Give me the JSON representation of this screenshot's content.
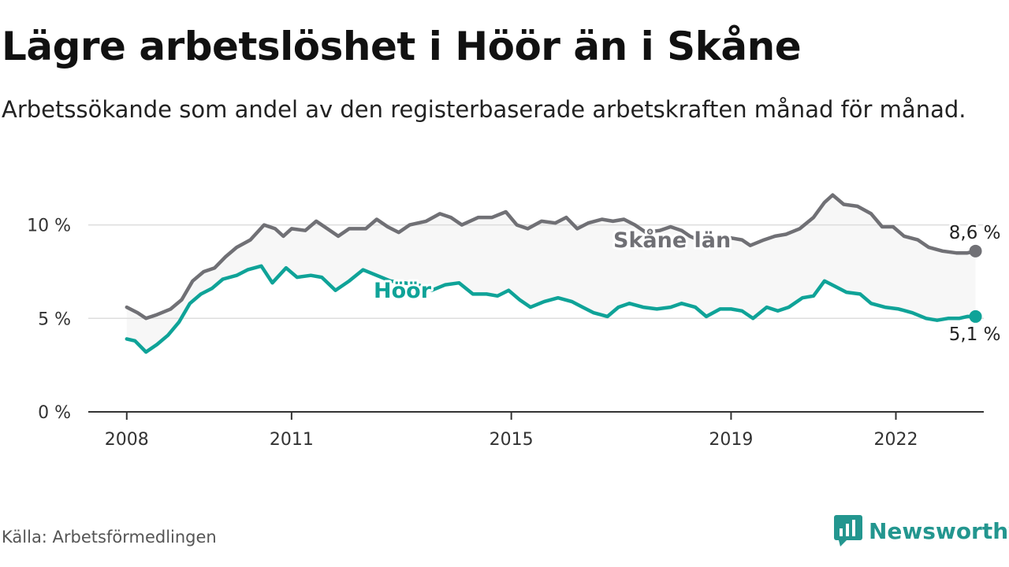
{
  "title": "Lägre arbetslöshet i Höör än i Skåne",
  "subtitle": "Arbetssökande som andel av den registerbaserade arbetskraften månad för månad.",
  "source": "Källa: Arbetsförmedlingen",
  "brand": {
    "name": "Newsworthy",
    "icon": "newsworthy-logo-icon"
  },
  "colors": {
    "skane": "#707075",
    "hoor": "#0fa398",
    "band": "#f7f7f7",
    "grid": "#dddddd",
    "axis": "#333333",
    "text": "#333333"
  },
  "chart_data": {
    "type": "line",
    "title": "Lägre arbetslöshet i Höör än i Skåne",
    "xlabel": "",
    "ylabel": "",
    "x_ticks": [
      {
        "value": 2008,
        "label": "2008"
      },
      {
        "value": 2011,
        "label": "2011"
      },
      {
        "value": 2015,
        "label": "2015"
      },
      {
        "value": 2019,
        "label": "2019"
      },
      {
        "value": 2022,
        "label": "2022"
      }
    ],
    "xlim": [
      2007.3,
      2023.6
    ],
    "y_ticks": [
      {
        "value": 0,
        "label": "0 %"
      },
      {
        "value": 5,
        "label": "5 %"
      },
      {
        "value": 10,
        "label": "10 %"
      }
    ],
    "ylim": [
      0,
      11.5
    ],
    "series": [
      {
        "name": "Skåne län",
        "label": "Skåne län",
        "end_label": "8,6 %",
        "values": [
          [
            2008.0,
            5.6
          ],
          [
            2008.2,
            5.3
          ],
          [
            2008.35,
            5.0
          ],
          [
            2008.55,
            5.2
          ],
          [
            2008.8,
            5.5
          ],
          [
            2009.0,
            6.0
          ],
          [
            2009.2,
            7.0
          ],
          [
            2009.4,
            7.5
          ],
          [
            2009.6,
            7.7
          ],
          [
            2009.8,
            8.3
          ],
          [
            2010.0,
            8.8
          ],
          [
            2010.25,
            9.2
          ],
          [
            2010.5,
            10.0
          ],
          [
            2010.7,
            9.8
          ],
          [
            2010.85,
            9.4
          ],
          [
            2011.0,
            9.8
          ],
          [
            2011.25,
            9.7
          ],
          [
            2011.45,
            10.2
          ],
          [
            2011.65,
            9.8
          ],
          [
            2011.85,
            9.4
          ],
          [
            2012.05,
            9.8
          ],
          [
            2012.35,
            9.8
          ],
          [
            2012.55,
            10.3
          ],
          [
            2012.75,
            9.9
          ],
          [
            2012.95,
            9.6
          ],
          [
            2013.15,
            10.0
          ],
          [
            2013.45,
            10.2
          ],
          [
            2013.7,
            10.6
          ],
          [
            2013.9,
            10.4
          ],
          [
            2014.1,
            10.0
          ],
          [
            2014.4,
            10.4
          ],
          [
            2014.65,
            10.4
          ],
          [
            2014.9,
            10.7
          ],
          [
            2015.1,
            10.0
          ],
          [
            2015.3,
            9.8
          ],
          [
            2015.55,
            10.2
          ],
          [
            2015.8,
            10.1
          ],
          [
            2016.0,
            10.4
          ],
          [
            2016.2,
            9.8
          ],
          [
            2016.4,
            10.1
          ],
          [
            2016.65,
            10.3
          ],
          [
            2016.85,
            10.2
          ],
          [
            2017.05,
            10.3
          ],
          [
            2017.25,
            10.0
          ],
          [
            2017.45,
            9.6
          ],
          [
            2017.7,
            9.7
          ],
          [
            2017.9,
            9.9
          ],
          [
            2018.1,
            9.7
          ],
          [
            2018.25,
            9.4
          ],
          [
            2018.4,
            9.2
          ],
          [
            2018.6,
            9.3
          ],
          [
            2018.8,
            9.3
          ],
          [
            2019.0,
            9.3
          ],
          [
            2019.2,
            9.2
          ],
          [
            2019.35,
            8.9
          ],
          [
            2019.6,
            9.2
          ],
          [
            2019.8,
            9.4
          ],
          [
            2020.0,
            9.5
          ],
          [
            2020.25,
            9.8
          ],
          [
            2020.5,
            10.4
          ],
          [
            2020.7,
            11.2
          ],
          [
            2020.85,
            11.6
          ],
          [
            2021.05,
            11.1
          ],
          [
            2021.3,
            11.0
          ],
          [
            2021.55,
            10.6
          ],
          [
            2021.75,
            9.9
          ],
          [
            2021.95,
            9.9
          ],
          [
            2022.15,
            9.4
          ],
          [
            2022.4,
            9.2
          ],
          [
            2022.6,
            8.8
          ],
          [
            2022.85,
            8.6
          ],
          [
            2023.1,
            8.5
          ],
          [
            2023.3,
            8.5
          ],
          [
            2023.45,
            8.6
          ]
        ]
      },
      {
        "name": "Höör",
        "label": "Höör",
        "end_label": "5,1 %",
        "values": [
          [
            2008.0,
            3.9
          ],
          [
            2008.15,
            3.8
          ],
          [
            2008.35,
            3.2
          ],
          [
            2008.55,
            3.6
          ],
          [
            2008.75,
            4.1
          ],
          [
            2008.95,
            4.8
          ],
          [
            2009.15,
            5.8
          ],
          [
            2009.35,
            6.3
          ],
          [
            2009.55,
            6.6
          ],
          [
            2009.75,
            7.1
          ],
          [
            2010.0,
            7.3
          ],
          [
            2010.2,
            7.6
          ],
          [
            2010.45,
            7.8
          ],
          [
            2010.65,
            6.9
          ],
          [
            2010.9,
            7.7
          ],
          [
            2011.1,
            7.2
          ],
          [
            2011.35,
            7.3
          ],
          [
            2011.55,
            7.2
          ],
          [
            2011.8,
            6.5
          ],
          [
            2012.05,
            7.0
          ],
          [
            2012.3,
            7.6
          ],
          [
            2012.55,
            7.3
          ],
          [
            2012.8,
            7.0
          ],
          [
            2013.05,
            6.9
          ],
          [
            2013.3,
            6.8
          ],
          [
            2013.55,
            6.5
          ],
          [
            2013.8,
            6.8
          ],
          [
            2014.05,
            6.9
          ],
          [
            2014.3,
            6.3
          ],
          [
            2014.55,
            6.3
          ],
          [
            2014.75,
            6.2
          ],
          [
            2014.95,
            6.5
          ],
          [
            2015.15,
            6.0
          ],
          [
            2015.35,
            5.6
          ],
          [
            2015.6,
            5.9
          ],
          [
            2015.85,
            6.1
          ],
          [
            2016.1,
            5.9
          ],
          [
            2016.3,
            5.6
          ],
          [
            2016.5,
            5.3
          ],
          [
            2016.75,
            5.1
          ],
          [
            2016.95,
            5.6
          ],
          [
            2017.15,
            5.8
          ],
          [
            2017.4,
            5.6
          ],
          [
            2017.65,
            5.5
          ],
          [
            2017.9,
            5.6
          ],
          [
            2018.1,
            5.8
          ],
          [
            2018.35,
            5.6
          ],
          [
            2018.55,
            5.1
          ],
          [
            2018.8,
            5.5
          ],
          [
            2019.0,
            5.5
          ],
          [
            2019.2,
            5.4
          ],
          [
            2019.4,
            5.0
          ],
          [
            2019.65,
            5.6
          ],
          [
            2019.85,
            5.4
          ],
          [
            2020.05,
            5.6
          ],
          [
            2020.3,
            6.1
          ],
          [
            2020.5,
            6.2
          ],
          [
            2020.7,
            7.0
          ],
          [
            2020.9,
            6.7
          ],
          [
            2021.1,
            6.4
          ],
          [
            2021.35,
            6.3
          ],
          [
            2021.55,
            5.8
          ],
          [
            2021.8,
            5.6
          ],
          [
            2022.05,
            5.5
          ],
          [
            2022.3,
            5.3
          ],
          [
            2022.55,
            5.0
          ],
          [
            2022.75,
            4.9
          ],
          [
            2022.95,
            5.0
          ],
          [
            2023.15,
            5.0
          ],
          [
            2023.3,
            5.1
          ],
          [
            2023.45,
            5.1
          ]
        ]
      }
    ]
  }
}
